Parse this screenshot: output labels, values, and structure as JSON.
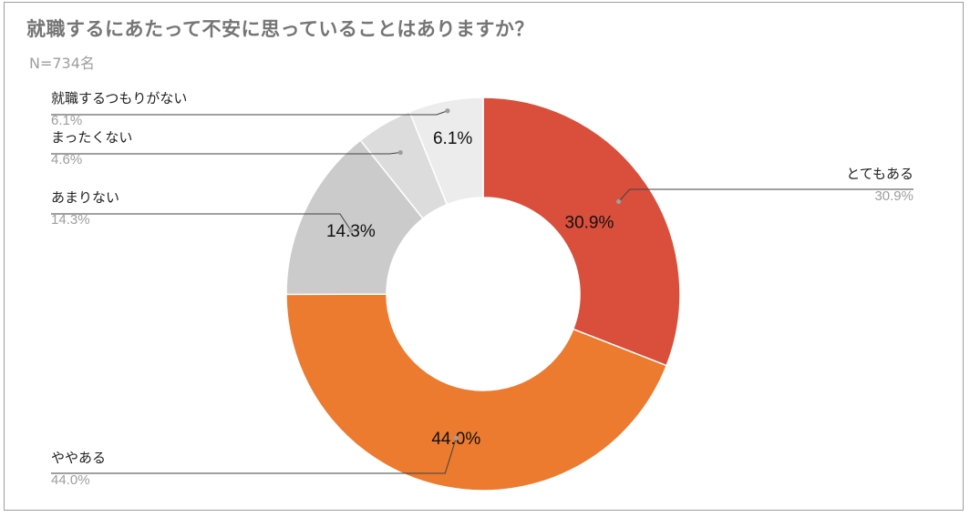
{
  "title": "就職するにあたって不安に思っていることはありますか？",
  "subtitle": "N=734名",
  "colors": {
    "title": "#757575",
    "subtitle": "#9e9e9e",
    "leader": "#424242"
  },
  "chart_data": {
    "type": "pie",
    "donut": true,
    "title": "就職するにあたって不安に思っていることはありますか？",
    "subtitle": "N=734名",
    "slices": [
      {
        "label": "とてもある",
        "value": 30.9,
        "value_label": "30.9%",
        "color": "#d94f3c"
      },
      {
        "label": "ややある",
        "value": 44.0,
        "value_label": "44.0%",
        "color": "#ec7a2f"
      },
      {
        "label": "あまりない",
        "value": 14.3,
        "value_label": "14.3%",
        "color": "#cbcbcb"
      },
      {
        "label": "まったくない",
        "value": 4.6,
        "value_label": "4.6%",
        "color": "#dcdcdc"
      },
      {
        "label": "就職するつもりがない",
        "value": 6.1,
        "value_label": "6.1%",
        "color": "#ececec"
      }
    ],
    "legend": "callout-labels"
  }
}
